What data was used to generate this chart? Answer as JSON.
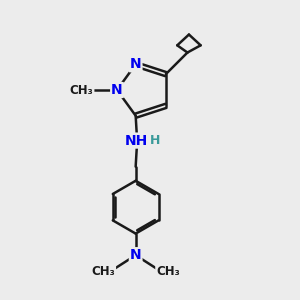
{
  "bg_color": "#ececec",
  "bond_color": "#1a1a1a",
  "N_color": "#0000ee",
  "H_color": "#3a9a9a",
  "bond_width": 1.8,
  "fig_size": [
    3.0,
    3.0
  ],
  "dpi": 100,
  "xlim": [
    0,
    10
  ],
  "ylim": [
    0,
    10
  ],
  "font_size_N": 10,
  "font_size_H": 9,
  "font_size_methyl": 8.5
}
